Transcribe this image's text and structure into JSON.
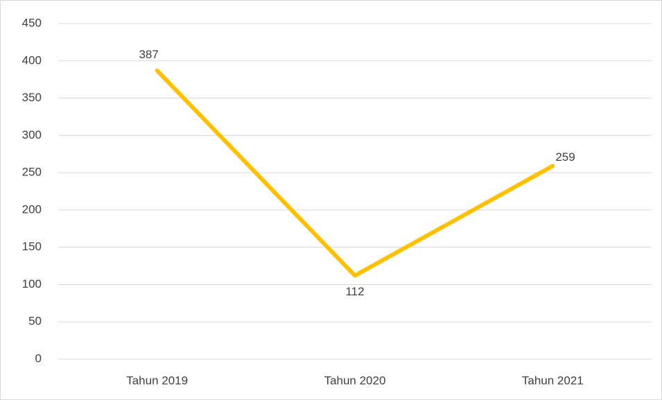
{
  "chart_data": {
    "type": "line",
    "categories": [
      "Tahun 2019",
      "Tahun 2020",
      "Tahun 2021"
    ],
    "series": [
      {
        "name": "Series 1",
        "color": "#ffc000",
        "values": [
          387,
          112,
          259
        ]
      }
    ],
    "ylim": [
      0,
      450
    ],
    "yticks": [
      0,
      50,
      100,
      150,
      200,
      250,
      300,
      350,
      400,
      450
    ],
    "grid": true,
    "legend": false
  }
}
